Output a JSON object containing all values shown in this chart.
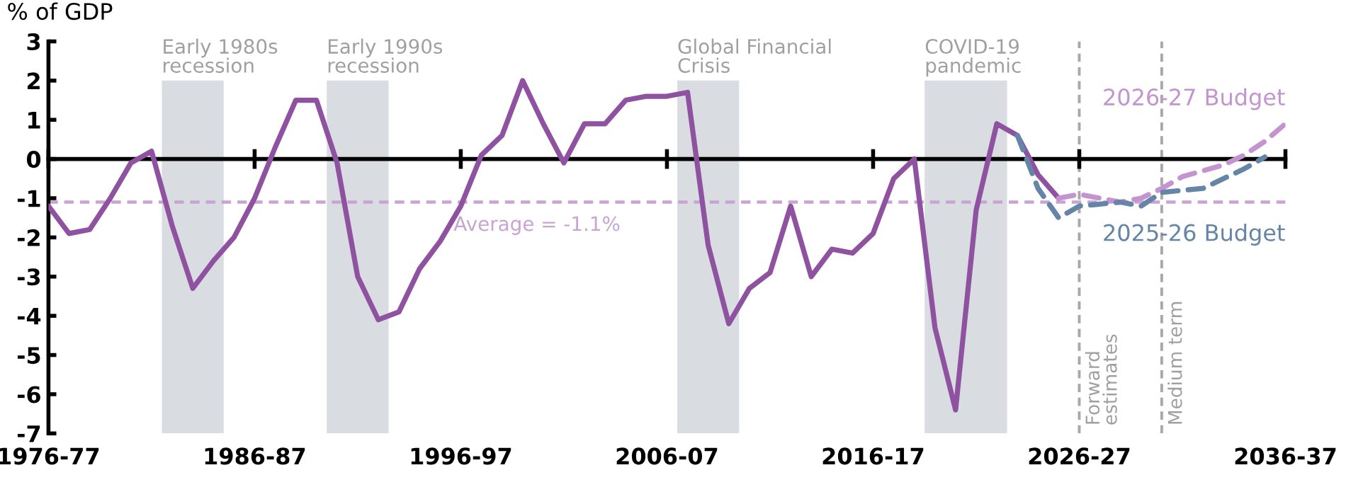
{
  "chart_data": {
    "type": "line",
    "ylabel": "% of GDP",
    "categories": [
      "1976-77",
      null,
      null,
      null,
      null,
      null,
      null,
      null,
      null,
      null,
      "1986-87",
      null,
      null,
      null,
      null,
      null,
      null,
      null,
      null,
      null,
      "1996-97",
      null,
      null,
      null,
      null,
      null,
      null,
      null,
      null,
      null,
      "2006-07",
      null,
      null,
      null,
      null,
      null,
      null,
      null,
      null,
      null,
      "2016-17",
      null,
      null,
      null,
      null,
      null,
      null,
      null,
      null,
      null,
      "2026-27",
      null,
      null,
      null,
      null,
      null,
      null,
      null,
      null,
      null,
      "2036-37"
    ],
    "ylim": [
      -7,
      3
    ],
    "yticks": [
      -7,
      -6,
      -5,
      -4,
      -3,
      -2,
      -1,
      0,
      1,
      2,
      3
    ],
    "legend": false,
    "annotations": [
      "Early 1980s\nrecession",
      "Early 1990s\nrecession",
      "Global Financial\nCrisis",
      "COVID-19\npandemic",
      "Forward\nestimates",
      "Medium term"
    ],
    "series": [
      {
        "color": "#8f52a0",
        "line_style": "solid",
        "values": [
          -1.2,
          -1.9,
          -1.8,
          -1.0,
          -0.1,
          0.2,
          -1.7,
          -3.3,
          -2.6,
          -2.0,
          -1.0,
          0.3,
          1.5,
          1.5,
          -0.1,
          -3.0,
          -4.1,
          -3.9,
          -2.8,
          -2.1,
          -1.2,
          0.1,
          0.6,
          2.0,
          0.9,
          -0.1,
          0.9,
          0.9,
          1.5,
          1.6,
          1.6,
          1.7,
          -2.2,
          -4.2,
          -3.3,
          -2.9,
          -1.2,
          -3.0,
          -2.3,
          -2.4,
          -1.9,
          -0.5,
          0.0,
          -4.3,
          -6.4,
          -1.3,
          0.9,
          0.6,
          -0.4,
          -1.0,
          null,
          null,
          null,
          null,
          null,
          null,
          null,
          null,
          null,
          null,
          null
        ]
      },
      {
        "name": "2026-27 Budget",
        "color": "#c494d0",
        "line_style": "dashed",
        "values": [
          null,
          null,
          null,
          null,
          null,
          null,
          null,
          null,
          null,
          null,
          null,
          null,
          null,
          null,
          null,
          null,
          null,
          null,
          null,
          null,
          null,
          null,
          null,
          null,
          null,
          null,
          null,
          null,
          null,
          null,
          null,
          null,
          null,
          null,
          null,
          null,
          null,
          null,
          null,
          null,
          null,
          null,
          null,
          null,
          null,
          null,
          null,
          null,
          null,
          -1.0,
          -0.9,
          -1.0,
          -1.1,
          -1.0,
          -0.75,
          -0.45,
          -0.3,
          -0.15,
          0.1,
          0.45,
          0.9
        ]
      },
      {
        "name": "2025-26 Budget",
        "color": "#6485a8",
        "line_style": "dashed",
        "values": [
          null,
          null,
          null,
          null,
          null,
          null,
          null,
          null,
          null,
          null,
          null,
          null,
          null,
          null,
          null,
          null,
          null,
          null,
          null,
          null,
          null,
          null,
          null,
          null,
          null,
          null,
          null,
          null,
          null,
          null,
          null,
          null,
          null,
          null,
          null,
          null,
          null,
          null,
          null,
          null,
          null,
          null,
          null,
          null,
          null,
          null,
          null,
          0.6,
          -0.75,
          -1.5,
          -1.2,
          -1.15,
          -1.1,
          -1.2,
          -0.85,
          -0.8,
          -0.75,
          -0.5,
          -0.25,
          0.05,
          null
        ]
      }
    ],
    "ref_lines": [
      {
        "axis": "y",
        "value": -1.1,
        "label": "Average = -1.1%",
        "color": "#c9a3d3",
        "line_style": "dashed"
      }
    ]
  }
}
